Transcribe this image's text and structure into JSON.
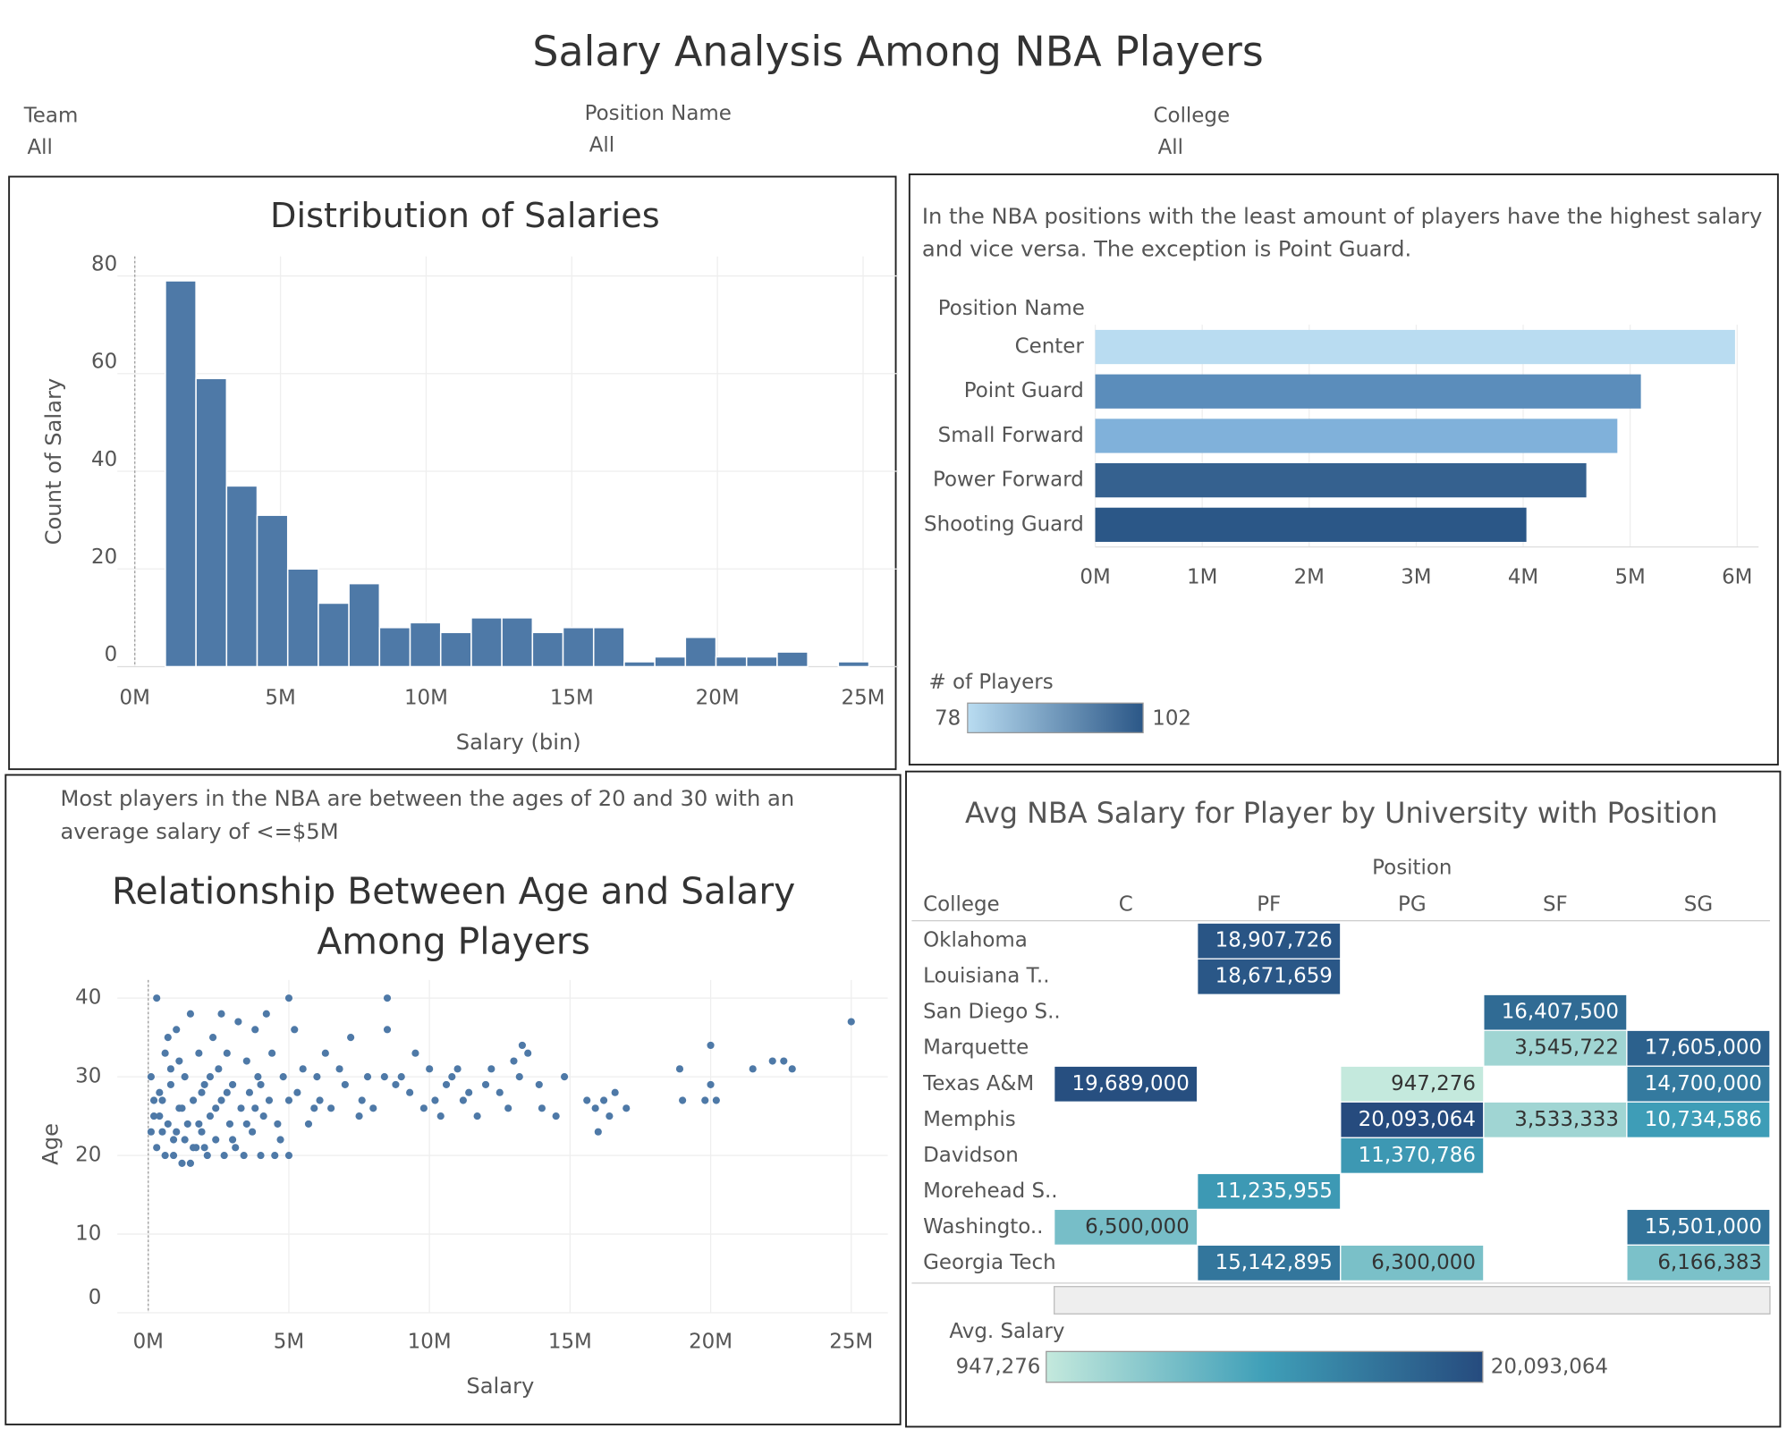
{
  "title": "Salary Analysis Among NBA Players",
  "filters": [
    {
      "label": "Team",
      "value": "All"
    },
    {
      "label": "Position Name",
      "value": "All"
    },
    {
      "label": "College",
      "value": "All"
    }
  ],
  "chart_data": [
    {
      "type": "histogram",
      "title": "Distribution of Salaries",
      "xlabel": "Salary (bin)",
      "ylabel": "Count of Salary",
      "bins": [
        1.05,
        2.1,
        3.15,
        4.2,
        5.25,
        6.3,
        7.35,
        8.4,
        9.45,
        10.5,
        11.55,
        12.6,
        13.65,
        14.7,
        15.75,
        16.8,
        17.85,
        18.9,
        19.95,
        21,
        22.05,
        23.1,
        24.15,
        25.2
      ],
      "values": [
        79,
        59,
        37,
        31,
        20,
        13,
        17,
        8,
        9,
        7,
        10,
        10,
        7,
        8,
        8,
        1,
        2,
        6,
        2,
        2,
        3,
        0,
        1
      ],
      "color": "#4e79a7",
      "xlim": [
        -0.6,
        26.2
      ],
      "ylim": [
        0,
        84
      ],
      "xticks": [
        {
          "value": 0,
          "label": "0M"
        },
        {
          "value": 5,
          "label": "5M"
        },
        {
          "value": 10,
          "label": "10M"
        },
        {
          "value": 15,
          "label": "15M"
        },
        {
          "value": 20,
          "label": "20M"
        },
        {
          "value": 25,
          "label": "25M"
        }
      ],
      "yticks": [
        0,
        20,
        40,
        60,
        80
      ],
      "grid": true
    },
    {
      "type": "bar",
      "orientation": "horizontal",
      "annotation": "In the NBA positions with the least amount of players have the highest salary and vice versa. The exception is Point Guard.",
      "ylabel": "Position Name",
      "categories": [
        "Center",
        "Point Guard",
        "Small Forward",
        "Power Forward",
        "Shooting Guard"
      ],
      "values": [
        5.98,
        5.1,
        4.88,
        4.59,
        4.03
      ],
      "colors": [
        "#b9dcf1",
        "#5b8dbb",
        "#80b1da",
        "#35618f",
        "#2b5787"
      ],
      "xlim": [
        0,
        6.2
      ],
      "xticks": [
        {
          "value": 0,
          "label": "0M"
        },
        {
          "value": 1,
          "label": "1M"
        },
        {
          "value": 2,
          "label": "2M"
        },
        {
          "value": 3,
          "label": "3M"
        },
        {
          "value": 4,
          "label": "4M"
        },
        {
          "value": 5,
          "label": "5M"
        },
        {
          "value": 6,
          "label": "6M"
        }
      ],
      "grid": true,
      "legend": {
        "title": "# of Players",
        "min": 78,
        "max": 102,
        "colors": [
          "#b9dcf1",
          "#2b5787"
        ]
      }
    },
    {
      "type": "scatter",
      "annotation": "Most players in the NBA are between the ages of 20 and 30 with an average salary of <=$5M",
      "title": "Relationship Between Age and Salary Among Players",
      "xlabel": "Salary",
      "ylabel": "Age",
      "x": [
        25,
        22.9,
        22.6,
        22.2,
        21.5,
        20,
        20,
        20.2,
        19.8,
        18.9,
        19,
        17,
        16.6,
        16.4,
        16.2,
        16,
        15.9,
        15.6,
        14.8,
        14.5,
        14,
        13.9,
        13.5,
        13.3,
        13.2,
        13,
        12.8,
        12.5,
        12.2,
        12,
        11.7,
        11.4,
        11.2,
        11,
        10.8,
        10.6,
        10.4,
        10.2,
        10,
        9.8,
        9.5,
        9.3,
        9,
        8.8,
        8.5,
        8.5,
        8.4,
        8,
        7.8,
        7.6,
        7.5,
        7.2,
        7,
        6.8,
        6.5,
        6.3,
        6.1,
        6,
        5.9,
        5.7,
        5.5,
        5.3,
        5.2,
        5,
        5,
        5,
        4.8,
        4.7,
        4.5,
        4.4,
        4.3,
        4.2,
        4.1,
        4,
        3.9,
        3.8,
        3.7,
        3.6,
        3.5,
        3.4,
        3.3,
        3.2,
        3.1,
        3,
        2.9,
        2.8,
        2.7,
        2.6,
        2.5,
        2.4,
        2.3,
        2.2,
        2.1,
        2,
        1.9,
        1.8,
        1.7,
        1.6,
        1.5,
        1.4,
        1.3,
        1.2,
        1.1,
        1,
        0.9,
        0.8,
        0.7,
        0.6,
        0.5,
        0.4,
        0.3,
        0.2,
        0.1,
        0.1,
        0.3,
        0.5,
        0.9,
        1.5,
        2,
        1.1,
        0.7,
        2.6,
        3.5,
        4,
        1.9,
        2.4,
        0.2,
        1.3,
        0.6,
        1.8,
        2.2,
        3,
        0.4,
        1,
        1.6,
        2.8,
        0.8,
        1.2,
        3.8,
        4.6
      ],
      "y": [
        37,
        31,
        32,
        32,
        31,
        34,
        29,
        27,
        27,
        31,
        27,
        26,
        28,
        25,
        27,
        23,
        26,
        27,
        30,
        25,
        26,
        29,
        33,
        34,
        30,
        32,
        26,
        28,
        31,
        29,
        25,
        28,
        27,
        31,
        30,
        29,
        25,
        27,
        31,
        26,
        33,
        28,
        30,
        29,
        36,
        40,
        30,
        26,
        30,
        27,
        25,
        35,
        29,
        31,
        26,
        33,
        27,
        30,
        26,
        24,
        31,
        28,
        36,
        40,
        20,
        27,
        30,
        22,
        20,
        33,
        27,
        38,
        25,
        20,
        30,
        36,
        23,
        28,
        32,
        20,
        26,
        37,
        21,
        29,
        24,
        33,
        20,
        27,
        31,
        22,
        35,
        25,
        20,
        29,
        23,
        33,
        21,
        27,
        38,
        24,
        30,
        19,
        26,
        36,
        22,
        29,
        24,
        33,
        23,
        28,
        40,
        25,
        30,
        23,
        21,
        27,
        20,
        19,
        21,
        32,
        35,
        38,
        24,
        29,
        28,
        26,
        27,
        22,
        20,
        24,
        30,
        22,
        25,
        23,
        21,
        28,
        31,
        26,
        26,
        24
      ],
      "color": "#4e79a7",
      "xlim": [
        -1.1,
        26.3
      ],
      "ylim": [
        0,
        42.3
      ],
      "xticks": [
        {
          "value": 0,
          "label": "0M"
        },
        {
          "value": 5,
          "label": "5M"
        },
        {
          "value": 10,
          "label": "10M"
        },
        {
          "value": 15,
          "label": "15M"
        },
        {
          "value": 20,
          "label": "20M"
        },
        {
          "value": 25,
          "label": "25M"
        }
      ],
      "yticks": [
        0,
        10,
        20,
        30,
        40
      ],
      "grid": true
    },
    {
      "type": "heatmap",
      "title": "Avg NBA Salary for Player by University with Position",
      "column_header": "Position",
      "row_header": "College",
      "columns": [
        "C",
        "PF",
        "PG",
        "SF",
        "SG"
      ],
      "rows": [
        "Oklahoma",
        "Louisiana T..",
        "San Diego S..",
        "Marquette",
        "Texas A&M",
        "Memphis",
        "Davidson",
        "Morehead S..",
        "Washingto..",
        "Georgia Tech"
      ],
      "values": [
        [
          null,
          18907726,
          null,
          null,
          null
        ],
        [
          null,
          18671659,
          null,
          null,
          null
        ],
        [
          null,
          null,
          null,
          16407500,
          null
        ],
        [
          null,
          null,
          null,
          3545722,
          17605000
        ],
        [
          19689000,
          null,
          947276,
          null,
          14700000
        ],
        [
          null,
          null,
          20093064,
          3533333,
          10734586
        ],
        [
          null,
          null,
          11370786,
          null,
          null
        ],
        [
          null,
          11235955,
          null,
          null,
          null
        ],
        [
          6500000,
          null,
          null,
          null,
          15501000
        ],
        [
          null,
          15142895,
          6300000,
          null,
          6166383
        ]
      ],
      "value_labels": [
        [
          null,
          "18,907,726",
          null,
          null,
          null
        ],
        [
          null,
          "18,671,659",
          null,
          null,
          null
        ],
        [
          null,
          null,
          null,
          "16,407,500",
          null
        ],
        [
          null,
          null,
          null,
          "3,545,722",
          "17,605,000"
        ],
        [
          "19,689,000",
          null,
          "947,276",
          null,
          "14,700,000"
        ],
        [
          null,
          null,
          "20,093,064",
          "3,533,333",
          "10,734,586"
        ],
        [
          null,
          null,
          "11,370,786",
          null,
          null
        ],
        [
          null,
          "11,235,955",
          null,
          null,
          null
        ],
        [
          "6,500,000",
          null,
          null,
          null,
          "15,501,000"
        ],
        [
          null,
          "15,142,895",
          "6,300,000",
          null,
          "6,166,383"
        ]
      ],
      "colors": [
        "#c4e9dd",
        "#3f9fb8",
        "#264b7e"
      ],
      "legend": {
        "title": "Avg. Salary",
        "min": {
          "value": 947276,
          "label": "947,276"
        },
        "max": {
          "value": 20093064,
          "label": "20,093,064"
        }
      }
    }
  ]
}
